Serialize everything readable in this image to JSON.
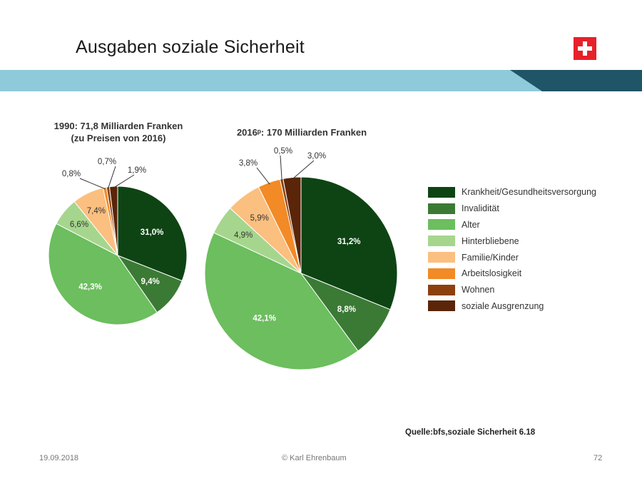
{
  "slide": {
    "title": "Ausgaben  soziale Sicherheit",
    "source": "Quelle:bfs,soziale  Sicherheit 6.18",
    "footer_date": "19.09.2018",
    "footer_author": "© Karl Ehrenbaum",
    "footer_page": "72"
  },
  "colors": {
    "band_light": "#8fcadb",
    "band_dark": "#1f5566"
  },
  "chart_data": [
    {
      "type": "pie",
      "title": "1990: 71,8 Milliarden Franken",
      "subtitle": "(zu Preisen von 2016)",
      "categories": [
        "Krankheit/Gesundheitsversorgung",
        "Invalidität",
        "Alter",
        "Hinterbliebene",
        "Familie/Kinder",
        "Arbeitslosigkeit",
        "Wohnen",
        "soziale Ausgrenzung"
      ],
      "values": [
        31.0,
        9.4,
        42.3,
        6.6,
        7.4,
        0.8,
        0.7,
        1.9
      ],
      "labels": [
        "31,0%",
        "9,4%",
        "42,3%",
        "6,6%",
        "7,4%",
        "0,8%",
        "0,7%",
        "1,9%"
      ]
    },
    {
      "type": "pie",
      "title": "2016ᵖ: 170 Milliarden Franken",
      "categories": [
        "Krankheit/Gesundheitsversorgung",
        "Invalidität",
        "Alter",
        "Hinterbliebene",
        "Familie/Kinder",
        "Arbeitslosigkeit",
        "Wohnen",
        "soziale Ausgrenzung"
      ],
      "values": [
        31.2,
        8.8,
        42.1,
        4.9,
        5.9,
        3.8,
        0.5,
        3.0
      ],
      "labels": [
        "31,2%",
        "8,8%",
        "42,1%",
        "4,9%",
        "5,9%",
        "3,8%",
        "0,5%",
        "3,0%"
      ]
    }
  ],
  "legend": [
    {
      "label": "Krankheit/Gesundheitsversorgung",
      "color": "#0e4414"
    },
    {
      "label": "Invalidität",
      "color": "#3b7a35"
    },
    {
      "label": "Alter",
      "color": "#6cbe5e"
    },
    {
      "label": "Hinterbliebene",
      "color": "#a6d68d"
    },
    {
      "label": "Familie/Kinder",
      "color": "#fbbf7f"
    },
    {
      "label": "Arbeitslosigkeit",
      "color": "#f28a26"
    },
    {
      "label": "Wohnen",
      "color": "#8c400d"
    },
    {
      "label": "soziale Ausgrenzung",
      "color": "#5a2508"
    }
  ]
}
